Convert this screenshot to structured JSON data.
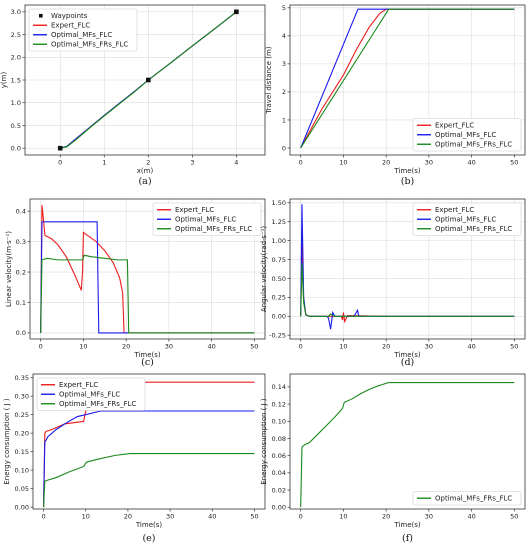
{
  "chart_data": [
    {
      "id": "a",
      "type": "line",
      "panel_label": "(a)",
      "xlabel": "x(m)",
      "ylabel": "y(m)",
      "xlim": [
        -0.8,
        4.65
      ],
      "ylim": [
        -0.15,
        3.15
      ],
      "xticks": [
        0,
        1,
        2,
        3,
        4
      ],
      "yticks": [
        0.0,
        0.5,
        1.0,
        1.5,
        2.0,
        2.5,
        3.0
      ],
      "ytick_format": 1,
      "grid": true,
      "legend_position": "top-left",
      "waypoints": {
        "name": "Waypoints",
        "x": [
          0,
          2,
          4
        ],
        "y": [
          0,
          1.5,
          3
        ]
      },
      "series": [
        {
          "name": "Expert_FLC",
          "color": "#ee1c1c",
          "x": [
            0,
            0.15,
            0.35,
            0.7,
            1.0,
            1.4,
            1.7,
            2.0,
            2.5,
            3.0,
            3.5,
            4.0
          ],
          "y": [
            0,
            0.04,
            0.2,
            0.48,
            0.72,
            1.03,
            1.26,
            1.5,
            1.87,
            2.25,
            2.62,
            3.0
          ]
        },
        {
          "name": "Optimal_MFs_FLC",
          "color": "#1a1aee",
          "x": [
            0,
            0.15,
            0.35,
            0.7,
            1.0,
            1.4,
            1.7,
            2.0,
            2.5,
            3.0,
            3.5,
            4.0
          ],
          "y": [
            0,
            0.04,
            0.2,
            0.48,
            0.72,
            1.03,
            1.26,
            1.5,
            1.87,
            2.25,
            2.62,
            3.0
          ]
        },
        {
          "name": "Optimal_MFs_FRs_FLC",
          "color": "#1a8a1a",
          "x": [
            0,
            0.15,
            0.35,
            0.7,
            1.0,
            1.4,
            1.7,
            2.0,
            2.5,
            3.0,
            3.5,
            4.0
          ],
          "y": [
            0,
            0.03,
            0.18,
            0.47,
            0.71,
            1.02,
            1.25,
            1.5,
            1.87,
            2.25,
            2.62,
            3.0
          ]
        }
      ]
    },
    {
      "id": "b",
      "type": "line",
      "panel_label": "(b)",
      "xlabel": "Time(s)",
      "ylabel": "Travel distance (m)",
      "xlim": [
        -2.5,
        52.5
      ],
      "ylim": [
        -0.25,
        5.1
      ],
      "xticks": [
        0,
        10,
        20,
        30,
        40,
        50
      ],
      "yticks": [
        0,
        1,
        2,
        3,
        4,
        5
      ],
      "ytick_format": 0,
      "grid": true,
      "legend_position": "bottom-right",
      "series": [
        {
          "name": "Expert_FLC",
          "color": "#ee1c1c",
          "x": [
            0,
            5,
            10,
            13,
            16,
            18.5,
            20,
            50
          ],
          "y": [
            0,
            1.4,
            2.6,
            3.5,
            4.3,
            4.8,
            4.95,
            4.95
          ]
        },
        {
          "name": "Optimal_MFs_FLC",
          "color": "#1a1aee",
          "x": [
            0,
            13.4,
            50
          ],
          "y": [
            0,
            4.95,
            4.95
          ]
        },
        {
          "name": "Optimal_MFs_FRs_FLC",
          "color": "#1a8a1a",
          "x": [
            0,
            20.6,
            50
          ],
          "y": [
            0,
            4.95,
            4.95
          ]
        }
      ]
    },
    {
      "id": "c",
      "type": "line",
      "panel_label": "(c)",
      "xlabel": "Time(s)",
      "ylabel": "Linear velocity(m·s⁻¹)",
      "xlim": [
        -2.5,
        52.5
      ],
      "ylim": [
        -0.02,
        0.44
      ],
      "xticks": [
        0,
        10,
        20,
        30,
        40,
        50
      ],
      "yticks": [
        0.0,
        0.1,
        0.2,
        0.3,
        0.4
      ],
      "ytick_format": 1,
      "grid": true,
      "legend_position": "top-right",
      "series": [
        {
          "name": "Expert_FLC",
          "color": "#ee1c1c",
          "x": [
            0,
            0.3,
            0.6,
            1.0,
            2.5,
            4.0,
            6.0,
            8.0,
            9.5,
            9.8,
            10.0,
            11.0,
            13.0,
            15.0,
            17.0,
            18.5,
            19.2,
            19.5,
            50
          ],
          "y": [
            0,
            0.42,
            0.38,
            0.32,
            0.31,
            0.29,
            0.25,
            0.19,
            0.14,
            0.2,
            0.33,
            0.32,
            0.3,
            0.27,
            0.23,
            0.18,
            0.13,
            0,
            0
          ]
        },
        {
          "name": "Optimal_MFs_FLC",
          "color": "#1a1aee",
          "x": [
            0,
            0.3,
            0.8,
            13.2,
            13.6,
            50
          ],
          "y": [
            0,
            0.365,
            0.365,
            0.365,
            0,
            0
          ]
        },
        {
          "name": "Optimal_MFs_FRs_FLC",
          "color": "#1a8a1a",
          "x": [
            0,
            0.3,
            1.5,
            4.0,
            7.0,
            9.8,
            10.2,
            12.0,
            15.0,
            18.0,
            20.3,
            20.6,
            50
          ],
          "y": [
            0,
            0.24,
            0.245,
            0.24,
            0.24,
            0.24,
            0.255,
            0.25,
            0.245,
            0.24,
            0.24,
            0,
            0
          ]
        }
      ]
    },
    {
      "id": "d",
      "type": "line",
      "panel_label": "(d)",
      "xlabel": "Time(s)",
      "ylabel": "Angular velocity(rad·s⁻¹)",
      "xlim": [
        -2.5,
        52.5
      ],
      "ylim": [
        -0.3,
        1.55
      ],
      "xticks": [
        0,
        10,
        20,
        30,
        40,
        50
      ],
      "yticks": [
        -0.25,
        0.0,
        0.25,
        0.5,
        0.75,
        1.0,
        1.25,
        1.5
      ],
      "ytick_format": 2,
      "grid": true,
      "legend_position": "top-right",
      "series": [
        {
          "name": "Expert_FLC",
          "color": "#ee1c1c",
          "x": [
            0,
            0.3,
            0.7,
            1.2,
            2.0,
            9.5,
            9.8,
            10.0,
            10.3,
            11,
            19.5,
            50
          ],
          "y": [
            0,
            0.95,
            0.2,
            0.02,
            0,
            0,
            -0.05,
            0.05,
            -0.07,
            0.01,
            0,
            0
          ]
        },
        {
          "name": "Optimal_MFs_FLC",
          "color": "#1a1aee",
          "x": [
            0,
            0.3,
            0.7,
            1.2,
            2.0,
            6.0,
            6.5,
            7.0,
            7.5,
            8.0,
            12.5,
            13.0,
            13.3,
            13.6,
            50
          ],
          "y": [
            0,
            1.48,
            0.25,
            0.02,
            0,
            0,
            -0.02,
            -0.17,
            0.05,
            0,
            0,
            0.05,
            0.08,
            0,
            0
          ]
        },
        {
          "name": "Optimal_MFs_FRs_FLC",
          "color": "#1a8a1a",
          "x": [
            0,
            0.3,
            0.7,
            1.2,
            2.0,
            6.5,
            7.0,
            7.5,
            8.0,
            20.6,
            50
          ],
          "y": [
            0,
            0.7,
            0.18,
            0.02,
            0,
            0,
            0.03,
            0.01,
            0,
            0,
            0
          ]
        }
      ]
    },
    {
      "id": "e",
      "type": "line",
      "panel_label": "(e)",
      "xlabel": "Time(s)",
      "ylabel": "Energy consumption ( J )",
      "xlim": [
        -2.5,
        52.5
      ],
      "ylim": [
        -0.005,
        0.36
      ],
      "xticks": [
        0,
        10,
        20,
        30,
        40,
        50
      ],
      "yticks": [
        0.0,
        0.05,
        0.1,
        0.15,
        0.2,
        0.25,
        0.3,
        0.35
      ],
      "ytick_format": 2,
      "grid": false,
      "legend_position": "top-left",
      "series": [
        {
          "name": "Expert_FLC",
          "color": "#ee1c1c",
          "x": [
            0,
            0.3,
            0.6,
            2,
            5,
            9.5,
            10,
            12,
            16,
            19.5,
            50
          ],
          "y": [
            0,
            0.2,
            0.205,
            0.21,
            0.225,
            0.232,
            0.26,
            0.28,
            0.315,
            0.338,
            0.338
          ]
        },
        {
          "name": "Optimal_MFs_FLC",
          "color": "#1a1aee",
          "x": [
            0,
            0.3,
            1,
            3,
            5,
            8,
            10,
            13.5,
            50
          ],
          "y": [
            0,
            0.175,
            0.19,
            0.21,
            0.225,
            0.245,
            0.25,
            0.26,
            0.26
          ]
        },
        {
          "name": "Optimal_MFs_FRs_FLC",
          "color": "#1a8a1a",
          "x": [
            0,
            0.3,
            1,
            3,
            6,
            9.5,
            10.2,
            13,
            17,
            20.6,
            50
          ],
          "y": [
            0,
            0.07,
            0.073,
            0.08,
            0.095,
            0.11,
            0.122,
            0.13,
            0.14,
            0.145,
            0.145
          ]
        }
      ]
    },
    {
      "id": "f",
      "type": "line",
      "panel_label": "(f)",
      "xlabel": "Time(s)",
      "ylabel": "Energy consumption ( J )",
      "xlim": [
        -2.5,
        52.5
      ],
      "ylim": [
        -0.002,
        0.155
      ],
      "xticks": [
        0,
        10,
        20,
        30,
        40,
        50
      ],
      "yticks": [
        0.0,
        0.02,
        0.04,
        0.06,
        0.08,
        0.1,
        0.12,
        0.14
      ],
      "ytick_format": 2,
      "grid": false,
      "legend_position": "bottom-right",
      "series": [
        {
          "name": "Optimal_MFs_FRs_FLC",
          "color": "#1a8a1a",
          "x": [
            0,
            0.3,
            1,
            2,
            4,
            6,
            8,
            9.8,
            10.2,
            12,
            14,
            16,
            18,
            20.6,
            50
          ],
          "y": [
            0,
            0.07,
            0.073,
            0.075,
            0.085,
            0.095,
            0.105,
            0.115,
            0.122,
            0.126,
            0.132,
            0.137,
            0.141,
            0.145,
            0.145
          ]
        }
      ]
    }
  ]
}
